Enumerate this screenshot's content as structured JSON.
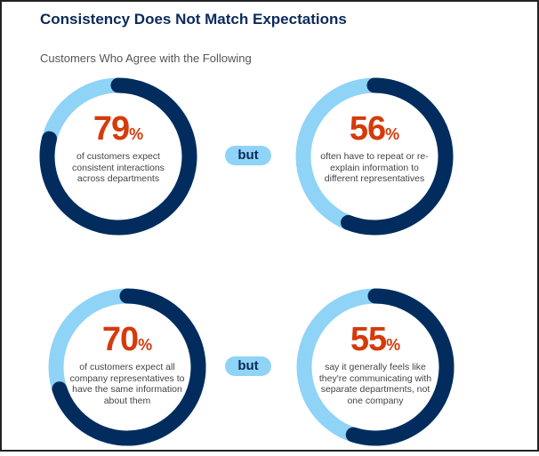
{
  "title": "Consistency Does Not Match Expectations",
  "subtitle": "Customers Who Agree with the Following",
  "connector_label": "but",
  "colors": {
    "filled": "#022c5e",
    "remainder": "#8fd3f7",
    "percent_text": "#d63a0b",
    "title": "#0b2a5b"
  },
  "chart_data": [
    {
      "type": "pie",
      "style": "donut",
      "value": 79,
      "unit": "%",
      "label": "79",
      "caption": "of customers expect consistent interactions across departments"
    },
    {
      "type": "pie",
      "style": "donut",
      "value": 56,
      "unit": "%",
      "label": "56",
      "caption": "often have to repeat or re-explain information to different representatives"
    },
    {
      "type": "pie",
      "style": "donut",
      "value": 70,
      "unit": "%",
      "label": "70",
      "caption": "of customers expect all company representatives to have the same information about them"
    },
    {
      "type": "pie",
      "style": "donut",
      "value": 55,
      "unit": "%",
      "label": "55",
      "caption": "say it generally feels like they're communicating with separate departments, not one company"
    }
  ]
}
